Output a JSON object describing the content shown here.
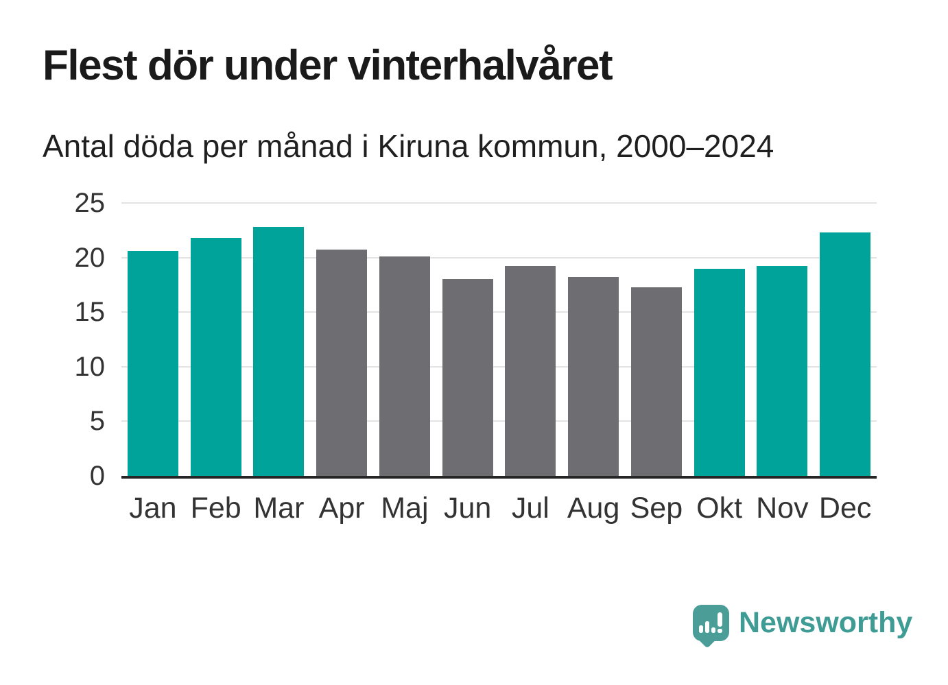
{
  "header": {
    "title": "Flest dör under vinterhalvåret",
    "subtitle": "Antal döda per månad i Kiruna kommun, 2000–2024"
  },
  "chart_data": {
    "type": "bar",
    "title": "Flest dör under vinterhalvåret",
    "subtitle": "Antal döda per månad i Kiruna kommun, 2000–2024",
    "categories": [
      "Jan",
      "Feb",
      "Mar",
      "Apr",
      "Maj",
      "Jun",
      "Jul",
      "Aug",
      "Sep",
      "Okt",
      "Nov",
      "Dec"
    ],
    "values": [
      20.6,
      21.8,
      22.8,
      20.7,
      20.1,
      18.0,
      19.2,
      18.2,
      17.3,
      19.0,
      19.2,
      22.3
    ],
    "highlighted": [
      true,
      true,
      true,
      false,
      false,
      false,
      false,
      false,
      false,
      true,
      true,
      true
    ],
    "xlabel": "",
    "ylabel": "",
    "ylim": [
      0,
      25
    ],
    "yticks": [
      0,
      5,
      10,
      15,
      20,
      25
    ],
    "grid": "horizontal",
    "legend": "none",
    "colors": {
      "winter_bar": "#00a39a",
      "summer_bar": "#6e6e72",
      "gridline": "#e3e3e3",
      "axis_line": "#262626",
      "tick_text": "#333333"
    }
  },
  "footer": {
    "brand": "Newsworthy",
    "logo_icon": "newsworthy-speech-bubble-chart-icon",
    "colors": {
      "logo": "#4a9e97",
      "text": "#3f9c95"
    }
  }
}
